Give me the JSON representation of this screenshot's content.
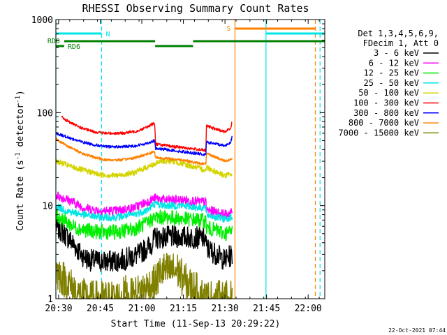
{
  "chart_data": {
    "type": "line",
    "title": "RHESSI Observing Summary Count Rates",
    "xlabel": "Start Time (11-Sep-13 20:29:22)",
    "ylabel_main": "Count Rate (s",
    "ylabel_sup1": "-1",
    "ylabel_mid": " detector",
    "ylabel_sup2": "-1",
    "ylabel_end": ")",
    "footer_date": "22-Oct-2021 07:44",
    "y_scale": "log",
    "ylim": [
      1,
      1000
    ],
    "xlim_minutes": [
      0,
      97
    ],
    "x_ticks": [
      {
        "t": 1,
        "label": "20:30"
      },
      {
        "t": 16,
        "label": "20:45"
      },
      {
        "t": 31,
        "label": "21:00"
      },
      {
        "t": 46,
        "label": "21:15"
      },
      {
        "t": 61,
        "label": "21:30"
      },
      {
        "t": 76,
        "label": "21:45"
      },
      {
        "t": 91,
        "label": "22:00"
      }
    ],
    "y_ticks": [
      {
        "v": 1,
        "label": "1"
      },
      {
        "v": 10,
        "label": "10"
      },
      {
        "v": 100,
        "label": "100"
      },
      {
        "v": 1000,
        "label": "1000"
      }
    ],
    "legend": {
      "header1": "Det 1,3,4,5,6,9,",
      "header2": "FDecim 1, Att 0",
      "placement": "top-right-outside",
      "entries": [
        {
          "label": "3 - 6 keV",
          "color": "#000000"
        },
        {
          "label": "6 - 12 keV",
          "color": "#ff00ff"
        },
        {
          "label": "12 - 25 keV",
          "color": "#00ee00"
        },
        {
          "label": "25 - 50 keV",
          "color": "#00e5e5"
        },
        {
          "label": "50 - 100 keV",
          "color": "#d4d400"
        },
        {
          "label": "100 - 300 keV",
          "color": "#ff0000"
        },
        {
          "label": "300 - 800 keV",
          "color": "#0000ff"
        },
        {
          "label": "800 - 7000 keV",
          "color": "#ff8000"
        },
        {
          "label": "7000 - 15000 keV",
          "color": "#808000"
        }
      ]
    },
    "series": [
      {
        "name": "3 - 6 keV",
        "color": "#000000",
        "spread": 0.12,
        "points": [
          [
            0,
            6
          ],
          [
            3,
            5
          ],
          [
            6,
            4
          ],
          [
            9,
            3
          ],
          [
            12,
            2.6
          ],
          [
            18,
            2.5
          ],
          [
            24,
            2.6
          ],
          [
            30,
            3
          ],
          [
            35,
            4
          ],
          [
            35.6,
            4.5
          ],
          [
            40,
            4.6
          ],
          [
            46,
            4.6
          ],
          [
            52,
            4.5
          ],
          [
            54.1,
            4.4
          ],
          [
            54.3,
            3.5
          ],
          [
            58,
            3
          ],
          [
            61,
            2.6
          ],
          [
            63.6,
            3
          ]
        ]
      },
      {
        "name": "6 - 12 keV",
        "color": "#ff00ff",
        "spread": 0.05,
        "points": [
          [
            0,
            13
          ],
          [
            3,
            12
          ],
          [
            6,
            11
          ],
          [
            10,
            9.5
          ],
          [
            16,
            8.8
          ],
          [
            22,
            8.8
          ],
          [
            28,
            9.5
          ],
          [
            33,
            11
          ],
          [
            35.6,
            12
          ],
          [
            40,
            11.5
          ],
          [
            46,
            11.5
          ],
          [
            52,
            11
          ],
          [
            54.1,
            11
          ],
          [
            54.3,
            9
          ],
          [
            58,
            8.5
          ],
          [
            61,
            8
          ],
          [
            63.6,
            8.5
          ]
        ]
      },
      {
        "name": "12 - 25 keV",
        "color": "#00ee00",
        "spread": 0.08,
        "points": [
          [
            0,
            8
          ],
          [
            3,
            7
          ],
          [
            6,
            6
          ],
          [
            10,
            5.5
          ],
          [
            16,
            5.2
          ],
          [
            22,
            5.2
          ],
          [
            28,
            5.6
          ],
          [
            33,
            6.5
          ],
          [
            35.6,
            7.5
          ],
          [
            40,
            7.5
          ],
          [
            46,
            7.2
          ],
          [
            52,
            7
          ],
          [
            54.1,
            6.8
          ],
          [
            54.3,
            5.8
          ],
          [
            58,
            5.4
          ],
          [
            61,
            5
          ],
          [
            63.6,
            5.3
          ]
        ]
      },
      {
        "name": "25 - 50 keV",
        "color": "#00e5e5",
        "spread": 0.04,
        "points": [
          [
            0,
            10
          ],
          [
            3,
            9
          ],
          [
            6,
            8.5
          ],
          [
            10,
            8
          ],
          [
            16,
            7.5
          ],
          [
            22,
            7.5
          ],
          [
            28,
            8
          ],
          [
            33,
            9
          ],
          [
            35.6,
            10.5
          ],
          [
            40,
            10
          ],
          [
            46,
            10
          ],
          [
            52,
            9.5
          ],
          [
            54.1,
            9.5
          ],
          [
            54.3,
            8
          ],
          [
            58,
            7.5
          ],
          [
            61,
            7.2
          ],
          [
            63.6,
            7.6
          ]
        ]
      },
      {
        "name": "50 - 100 keV",
        "color": "#d4d400",
        "spread": 0.03,
        "points": [
          [
            0,
            30
          ],
          [
            3,
            28
          ],
          [
            6,
            26
          ],
          [
            10,
            24
          ],
          [
            16,
            21.5
          ],
          [
            22,
            21
          ],
          [
            28,
            22.5
          ],
          [
            33,
            26
          ],
          [
            35.6,
            28
          ],
          [
            38,
            30
          ],
          [
            42,
            30
          ],
          [
            46,
            28
          ],
          [
            50,
            26
          ],
          [
            54.1,
            24
          ],
          [
            54.3,
            26
          ],
          [
            58,
            23
          ],
          [
            61,
            21
          ],
          [
            63.6,
            22
          ]
        ]
      },
      {
        "name": "100 - 300 keV",
        "color": "#ff0000",
        "spread": 0.015,
        "points": [
          [
            2,
            90
          ],
          [
            4,
            82
          ],
          [
            7,
            73
          ],
          [
            10,
            67
          ],
          [
            14,
            62
          ],
          [
            18,
            60
          ],
          [
            24,
            60
          ],
          [
            29,
            63
          ],
          [
            33,
            70
          ],
          [
            35.6,
            78
          ],
          [
            36,
            46
          ],
          [
            40,
            44
          ],
          [
            46,
            42
          ],
          [
            52,
            40
          ],
          [
            54.1,
            39
          ],
          [
            54.3,
            72
          ],
          [
            58,
            66
          ],
          [
            61,
            62
          ],
          [
            63,
            68
          ],
          [
            63.6,
            80
          ]
        ]
      },
      {
        "name": "300 - 800 keV",
        "color": "#0000ff",
        "spread": 0.015,
        "points": [
          [
            0,
            60
          ],
          [
            3,
            56
          ],
          [
            6,
            52
          ],
          [
            10,
            48
          ],
          [
            14,
            45
          ],
          [
            18,
            43
          ],
          [
            24,
            43
          ],
          [
            29,
            44
          ],
          [
            33,
            47
          ],
          [
            35.6,
            50
          ],
          [
            36,
            41
          ],
          [
            40,
            40
          ],
          [
            46,
            38
          ],
          [
            52,
            36
          ],
          [
            54.1,
            35
          ],
          [
            54.3,
            48
          ],
          [
            58,
            46
          ],
          [
            61,
            44
          ],
          [
            63,
            48
          ],
          [
            63.6,
            55
          ]
        ]
      },
      {
        "name": "800 - 7000 keV",
        "color": "#ff8000",
        "spread": 0.015,
        "points": [
          [
            0,
            52
          ],
          [
            3,
            46
          ],
          [
            6,
            41
          ],
          [
            10,
            36
          ],
          [
            14,
            33
          ],
          [
            18,
            31
          ],
          [
            24,
            31
          ],
          [
            29,
            33
          ],
          [
            33,
            36
          ],
          [
            35.6,
            38
          ],
          [
            36,
            33
          ],
          [
            40,
            32
          ],
          [
            46,
            31
          ],
          [
            50,
            29
          ],
          [
            54.1,
            28
          ],
          [
            54.3,
            36
          ],
          [
            58,
            33
          ],
          [
            61,
            30
          ],
          [
            63.6,
            32
          ]
        ]
      },
      {
        "name": "7000 - 15000 keV",
        "color": "#808000",
        "spread": 0.2,
        "points": [
          [
            0,
            2
          ],
          [
            3,
            1.6
          ],
          [
            6,
            1.3
          ],
          [
            8,
            1.1
          ],
          [
            12,
            1
          ],
          [
            24,
            1
          ],
          [
            25,
            1.2
          ],
          [
            26,
            1
          ],
          [
            36,
            1.5
          ],
          [
            38,
            2
          ],
          [
            44,
            2
          ],
          [
            46,
            1.6
          ],
          [
            54,
            1
          ],
          [
            63.6,
            1
          ]
        ]
      }
    ],
    "orbit_flags": [
      {
        "label": "N",
        "color": "#00e5e5",
        "level": "upper",
        "start": 0,
        "end": 16.5
      },
      {
        "label": "RD0",
        "color": "#008000",
        "level": "middle",
        "start": 3,
        "end": 35.8
      },
      {
        "label": "RD6",
        "color": "#008000",
        "level": "lower",
        "start": 0,
        "end": 3
      },
      {
        "label": "",
        "color": "#008000",
        "level": "lower",
        "start": 35.8,
        "end": 49.5
      },
      {
        "label": "",
        "color": "#008000",
        "level": "middle",
        "start": 49.5,
        "end": 97
      },
      {
        "label": "S",
        "color": "#ff8000",
        "level": "top",
        "start": 64.6,
        "end": 93.6
      },
      {
        "label": "",
        "color": "#00e5e5",
        "level": "upper",
        "start": 75.8,
        "end": 97
      }
    ],
    "vertical_markers": [
      {
        "t": 0,
        "color": "#00e5e5",
        "style": "solid"
      },
      {
        "t": 16.5,
        "color": "#00e5e5",
        "style": "dashed"
      },
      {
        "t": 64.6,
        "color": "#ff8000",
        "style": "solid"
      },
      {
        "t": 75.8,
        "color": "#00e5e5",
        "style": "solid"
      },
      {
        "t": 93.6,
        "color": "#ff8000",
        "style": "dashed"
      },
      {
        "t": 95.3,
        "color": "#00e5e5",
        "style": "dashed"
      }
    ]
  }
}
